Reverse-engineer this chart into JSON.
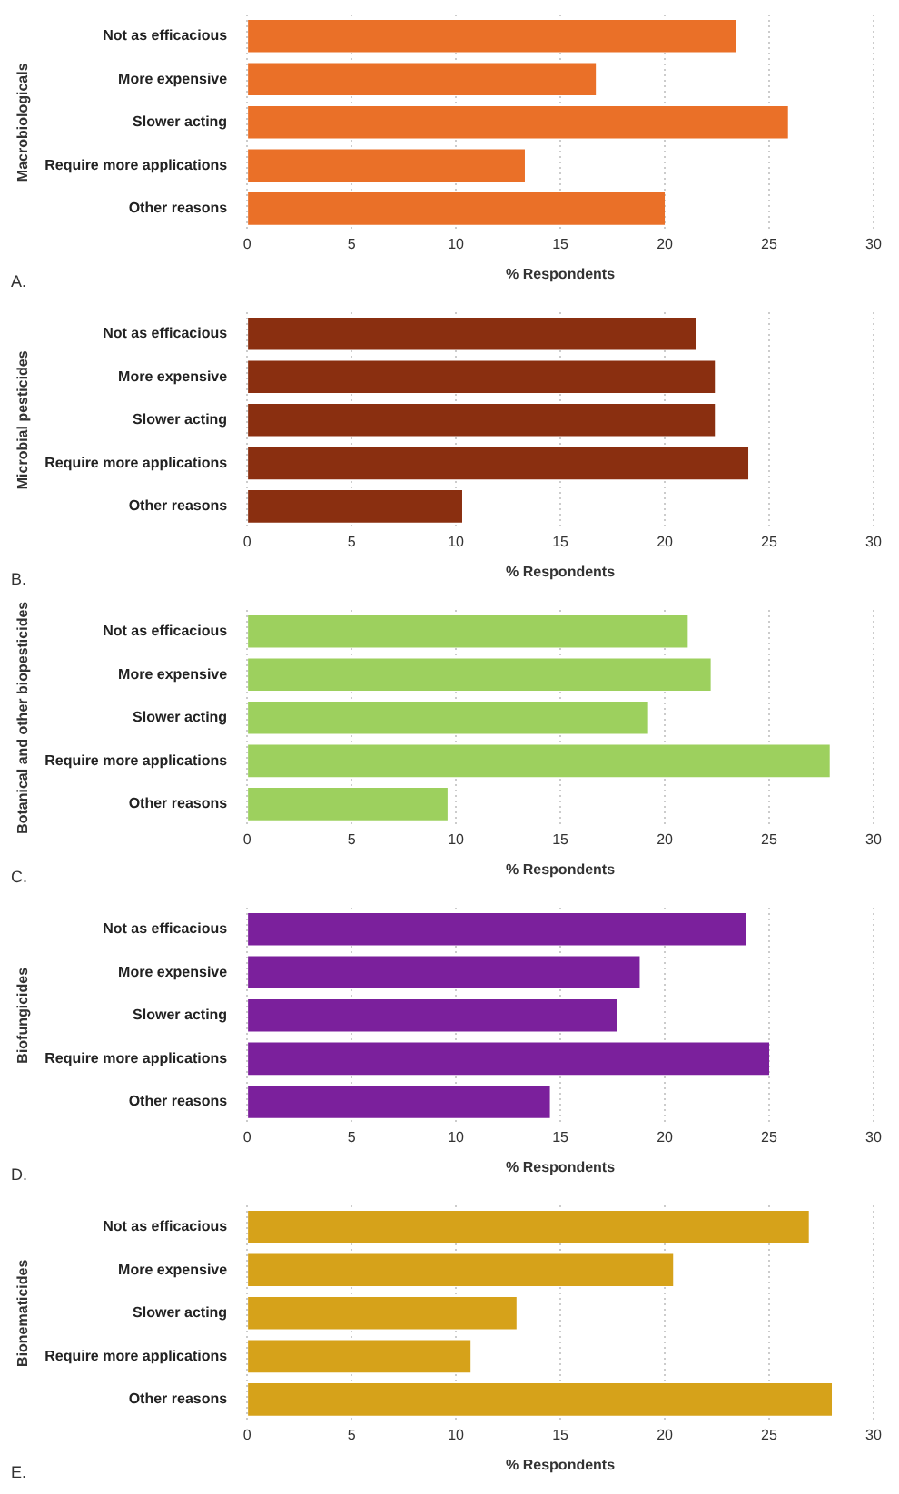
{
  "chart_data": [
    {
      "type": "bar",
      "orientation": "horizontal",
      "categories": [
        "Not as efficacious",
        "More expensive",
        "Slower acting",
        "Require more applications",
        "Other reasons"
      ],
      "values": [
        23.4,
        16.7,
        25.9,
        13.3,
        20.0
      ],
      "color": "#ea7028",
      "xlim": [
        0,
        30
      ],
      "xticks": [
        0,
        5,
        10,
        15,
        20,
        25,
        30
      ],
      "xlabel": "% Respondents",
      "ylabel": "Macrobiologicals",
      "annotations": [
        "A."
      ],
      "grid": "x"
    },
    {
      "type": "bar",
      "orientation": "horizontal",
      "categories": [
        "Not as efficacious",
        "More expensive",
        "Slower acting",
        "Require more applications",
        "Other reasons"
      ],
      "values": [
        21.5,
        22.4,
        22.4,
        24.0,
        10.3
      ],
      "color": "#8a2f10",
      "xlim": [
        0,
        30
      ],
      "xticks": [
        0,
        5,
        10,
        15,
        20,
        25,
        30
      ],
      "xlabel": "% Respondents",
      "ylabel": "Microbial pesticides",
      "annotations": [
        "B."
      ],
      "grid": "x"
    },
    {
      "type": "bar",
      "orientation": "horizontal",
      "categories": [
        "Not as efficacious",
        "More expensive",
        "Slower acting",
        "Require more applications",
        "Other reasons"
      ],
      "values": [
        21.1,
        22.2,
        19.2,
        27.9,
        9.6
      ],
      "color": "#9dd05e",
      "xlim": [
        0,
        30
      ],
      "xticks": [
        0,
        5,
        10,
        15,
        20,
        25,
        30
      ],
      "xlabel": "% Respondents",
      "ylabel": "Botanical and other biopesticides",
      "annotations": [
        "C."
      ],
      "grid": "x"
    },
    {
      "type": "bar",
      "orientation": "horizontal",
      "categories": [
        "Not as efficacious",
        "More expensive",
        "Slower acting",
        "Require more applications",
        "Other reasons"
      ],
      "values": [
        23.9,
        18.8,
        17.7,
        25.0,
        14.5
      ],
      "color": "#7b209c",
      "xlim": [
        0,
        30
      ],
      "xticks": [
        0,
        5,
        10,
        15,
        20,
        25,
        30
      ],
      "xlabel": "% Respondents",
      "ylabel": "Biofungicides",
      "annotations": [
        "D."
      ],
      "grid": "x"
    },
    {
      "type": "bar",
      "orientation": "horizontal",
      "categories": [
        "Not as efficacious",
        "More expensive",
        "Slower acting",
        "Require more applications",
        "Other reasons"
      ],
      "values": [
        26.9,
        20.4,
        12.9,
        10.7,
        28.0
      ],
      "color": "#d6a21a",
      "xlim": [
        0,
        30
      ],
      "xticks": [
        0,
        5,
        10,
        15,
        20,
        25,
        30
      ],
      "xlabel": "% Respondents",
      "ylabel": "Bionematicides",
      "annotations": [
        "E."
      ],
      "grid": "x"
    }
  ]
}
